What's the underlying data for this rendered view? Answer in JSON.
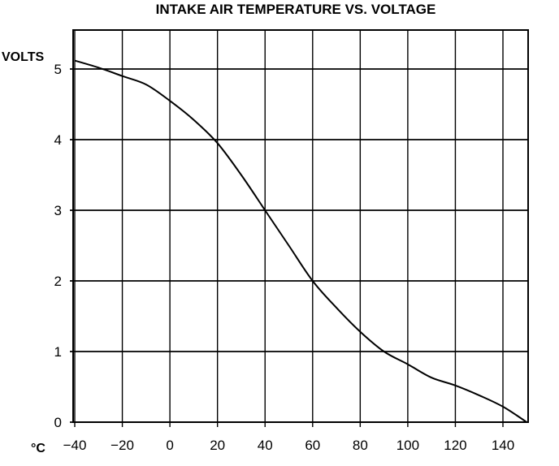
{
  "chart_data": {
    "type": "line",
    "title": "INTAKE AIR TEMPERATURE VS. VOLTAGE",
    "ylabel": "VOLTS",
    "xlabel": "°C",
    "x_ticks": [
      -40,
      -20,
      0,
      20,
      40,
      60,
      80,
      100,
      120,
      140
    ],
    "y_ticks": [
      0,
      1,
      2,
      3,
      4,
      5
    ],
    "xlim": [
      -40,
      150
    ],
    "ylim": [
      0,
      5.5
    ],
    "grid": true,
    "series": [
      {
        "x": [
          -40,
          -30,
          -20,
          -10,
          0,
          10,
          20,
          30,
          40,
          50,
          60,
          70,
          80,
          90,
          100,
          110,
          120,
          130,
          140,
          150
        ],
        "y": [
          5.12,
          5.02,
          4.9,
          4.78,
          4.55,
          4.28,
          3.95,
          3.5,
          3.0,
          2.5,
          2.0,
          1.62,
          1.28,
          1.0,
          0.82,
          0.63,
          0.52,
          0.38,
          0.22,
          0.0
        ]
      }
    ]
  }
}
